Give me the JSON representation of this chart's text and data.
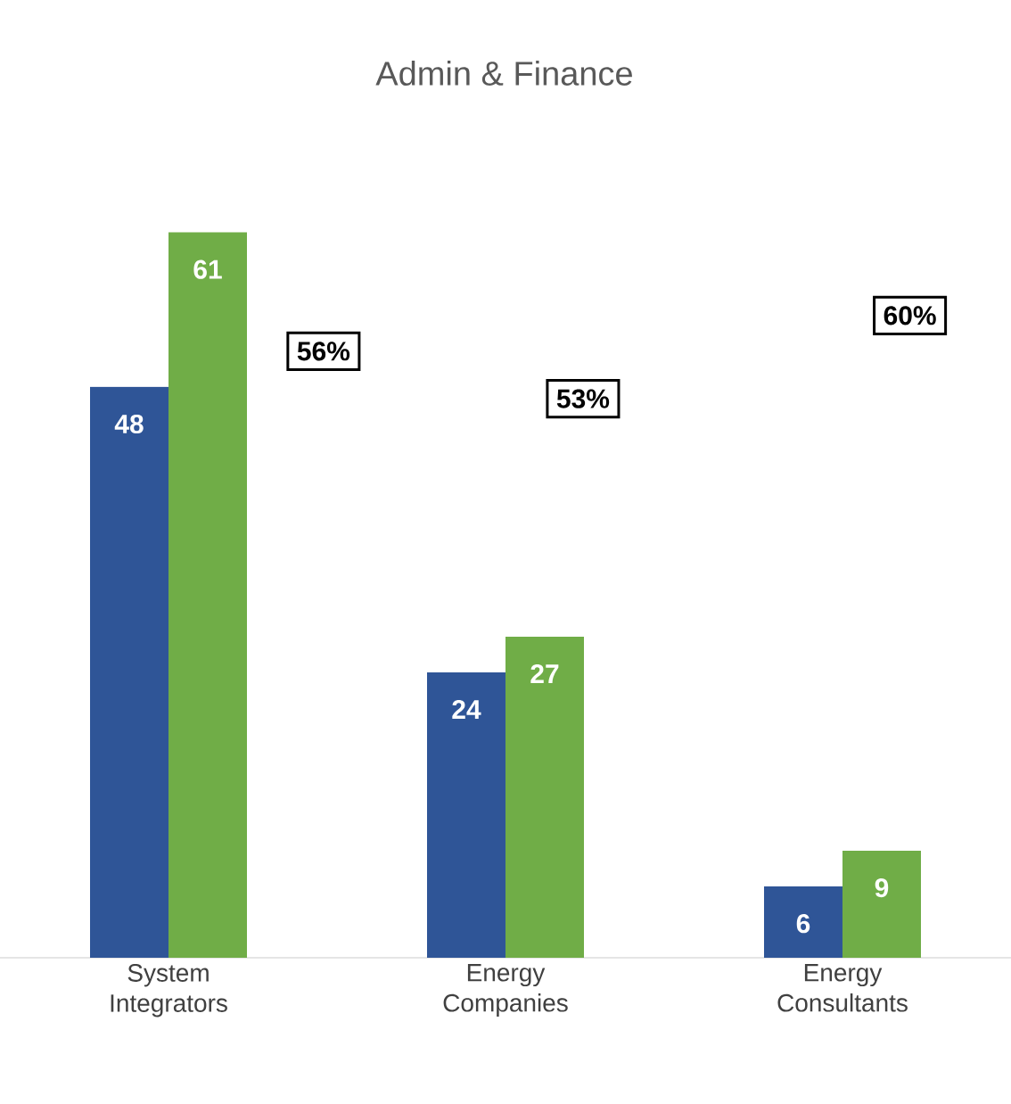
{
  "chart_data": {
    "type": "bar",
    "title": "Admin & Finance",
    "categories": [
      "System Integrators",
      "Energy Companies",
      "Energy Consultants"
    ],
    "series": [
      {
        "color": "#2f5597",
        "values": [
          48,
          24,
          6
        ]
      },
      {
        "color": "#70ad47",
        "values": [
          61,
          27,
          9
        ]
      }
    ],
    "data_labels": true,
    "tick_labels": "x",
    "annotations": [
      "56%",
      "53%",
      "60%"
    ]
  }
}
